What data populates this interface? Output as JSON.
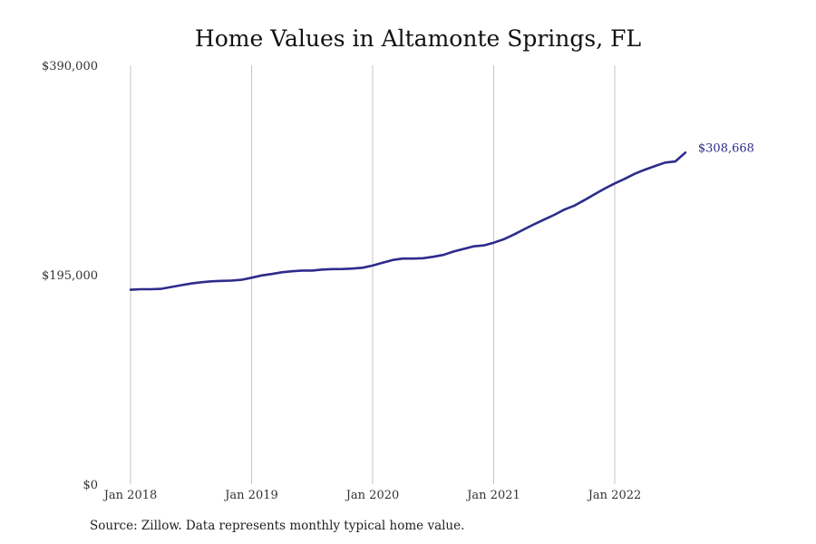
{
  "chart_data": {
    "type": "line",
    "title": "Home Values in Altamonte Springs, FL",
    "xlabel": "",
    "ylabel": "",
    "x_ticks": [
      "Jan 2018",
      "Jan 2019",
      "Jan 2020",
      "Jan 2021",
      "Jan 2022"
    ],
    "y_ticks": [
      "$0",
      "$195,000",
      "$390,000"
    ],
    "ylim": [
      0,
      390000
    ],
    "grid": "vertical",
    "line_color": "#2e2b8c",
    "end_label": "$308,668",
    "series": [
      {
        "values": [
          181000,
          181500,
          181500,
          181800,
          183500,
          185200,
          186800,
          188000,
          188800,
          189300,
          189500,
          190300,
          192200,
          194300,
          195700,
          197300,
          198200,
          198900,
          198900,
          199800,
          200200,
          200300,
          200700,
          201500,
          203500,
          206200,
          208800,
          210000,
          210000,
          210400,
          211700,
          213400,
          216500,
          219000,
          221400,
          222300,
          224800,
          228000,
          232400,
          237200,
          241900,
          246300,
          250700,
          255600,
          259300,
          264500,
          270000,
          275200,
          280000,
          284300,
          289000,
          292800,
          296200,
          299400,
          300400,
          308668
        ]
      }
    ]
  },
  "source_note": "Source: Zillow. Data represents monthly typical home value."
}
